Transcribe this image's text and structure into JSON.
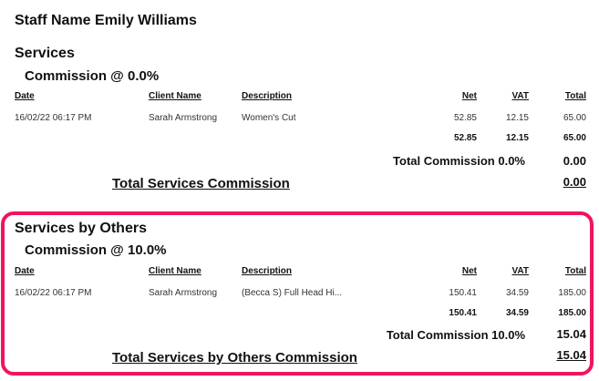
{
  "staff_heading": "Staff Name Emily Williams",
  "columns": {
    "date": "Date",
    "client": "Client Name",
    "description": "Description",
    "net": "Net",
    "vat": "VAT",
    "total": "Total"
  },
  "services": {
    "title": "Services",
    "commission_heading": "Commission @ 0.0%",
    "rows": [
      {
        "date": "16/02/22 06:17 PM",
        "client": "Sarah Armstrong",
        "description": "Women's Cut",
        "net": "52.85",
        "vat": "12.15",
        "total": "65.00"
      }
    ],
    "subtotal": {
      "net": "52.85",
      "vat": "12.15",
      "total": "65.00"
    },
    "total_commission_label": "Total Commission 0.0%",
    "total_commission_value": "0.00",
    "grand_label": "Total Services Commission",
    "grand_value": "0.00"
  },
  "services_by_others": {
    "title": "Services by Others",
    "commission_heading": "Commission @ 10.0%",
    "rows": [
      {
        "date": "16/02/22 06:17 PM",
        "client": "Sarah Armstrong",
        "description": "(Becca S) Full Head Hi...",
        "net": "150.41",
        "vat": "34.59",
        "total": "185.00"
      }
    ],
    "subtotal": {
      "net": "150.41",
      "vat": "34.59",
      "total": "185.00"
    },
    "total_commission_label": "Total Commission 10.0%",
    "total_commission_value": "15.04",
    "grand_label": "Total Services by Others Commission",
    "grand_value": "15.04"
  },
  "highlight_color": "#f0155d"
}
